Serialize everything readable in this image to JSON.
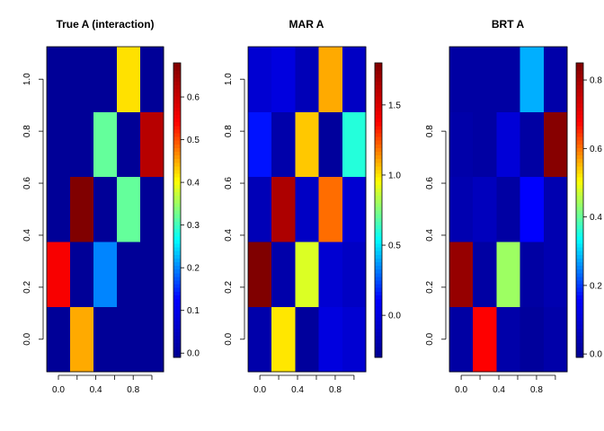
{
  "chart_data": [
    {
      "type": "heatmap",
      "title": "True A (interaction)",
      "xlabel": "",
      "ylabel": "",
      "xlim": [
        -0.125,
        1.125
      ],
      "ylim": [
        -0.125,
        1.125
      ],
      "x": [
        0.0,
        0.25,
        0.5,
        0.75,
        1.0
      ],
      "y": [
        0.0,
        0.25,
        0.5,
        0.75,
        1.0
      ],
      "x_ticks": [
        "0.0",
        "0.4",
        "0.8"
      ],
      "y_ticks": [
        "0.0",
        "0.2",
        "0.4",
        "0.6",
        "0.8",
        "1.0"
      ],
      "zlim": [
        -0.01,
        0.68
      ],
      "colorbar_ticks": [
        "0.0",
        "0.1",
        "0.2",
        "0.3",
        "0.4",
        "0.5",
        "0.6"
      ],
      "z": [
        [
          0.0,
          0.45,
          0.0,
          0.0,
          0.0
        ],
        [
          0.55,
          0.0,
          0.2,
          0.0,
          0.0
        ],
        [
          0.0,
          0.68,
          0.0,
          0.32,
          0.0
        ],
        [
          0.0,
          0.0,
          0.32,
          0.0,
          0.62
        ],
        [
          0.0,
          0.0,
          0.0,
          0.42,
          0.0
        ]
      ],
      "colormap": [
        "#00008F",
        "#0000FF",
        "#00FFFF",
        "#FFFF00",
        "#FF0000",
        "#800000"
      ]
    },
    {
      "type": "heatmap",
      "title": "MAR A",
      "xlabel": "",
      "ylabel": "",
      "xlim": [
        -0.125,
        1.125
      ],
      "ylim": [
        -0.125,
        1.125
      ],
      "x": [
        0.0,
        0.25,
        0.5,
        0.75,
        1.0
      ],
      "y": [
        0.0,
        0.25,
        0.5,
        0.75,
        1.0
      ],
      "x_ticks": [
        "0.0",
        "0.4",
        "0.8"
      ],
      "y_ticks": [
        "0.0",
        "0.2",
        "0.4",
        "0.6",
        "0.8",
        "1.0"
      ],
      "zlim": [
        -0.3,
        1.8
      ],
      "colorbar_ticks": [
        "0.0",
        "0.5",
        "1.0",
        "1.5"
      ],
      "z": [
        [
          -0.2,
          1.0,
          -0.25,
          0.0,
          -0.05
        ],
        [
          1.8,
          -0.2,
          0.9,
          -0.05,
          -0.1
        ],
        [
          -0.15,
          1.65,
          -0.1,
          1.2,
          -0.05
        ],
        [
          0.15,
          -0.2,
          1.05,
          -0.25,
          0.6
        ],
        [
          -0.05,
          0.0,
          -0.15,
          1.1,
          -0.1
        ]
      ],
      "colormap": [
        "#00008F",
        "#0000FF",
        "#00FFFF",
        "#FFFF00",
        "#FF0000",
        "#800000"
      ]
    },
    {
      "type": "heatmap",
      "title": "BRT A",
      "xlabel": "",
      "ylabel": "",
      "xlim": [
        -0.125,
        1.125
      ],
      "ylim": [
        -0.125,
        1.125
      ],
      "x": [
        0.0,
        0.25,
        0.5,
        0.75,
        1.0
      ],
      "y": [
        0.0,
        0.25,
        0.5,
        0.75,
        1.0
      ],
      "x_ticks": [
        "0.0",
        "0.4",
        "0.8"
      ],
      "y_ticks": [
        "0.0",
        "0.2",
        "0.4",
        "0.6",
        "0.8"
      ],
      "zlim": [
        -0.01,
        0.85
      ],
      "colorbar_ticks": [
        "0.0",
        "0.2",
        "0.4",
        "0.6",
        "0.8"
      ],
      "z": [
        [
          0.02,
          0.68,
          0.03,
          0.01,
          0.03
        ],
        [
          0.82,
          0.02,
          0.44,
          0.02,
          0.04
        ],
        [
          0.04,
          0.06,
          0.02,
          0.16,
          0.04
        ],
        [
          0.03,
          0.02,
          0.1,
          0.02,
          0.84
        ],
        [
          0.02,
          0.02,
          0.02,
          0.28,
          0.03
        ]
      ],
      "colormap": [
        "#00008F",
        "#0000FF",
        "#00FFFF",
        "#FFFF00",
        "#FF0000",
        "#800000"
      ]
    }
  ]
}
